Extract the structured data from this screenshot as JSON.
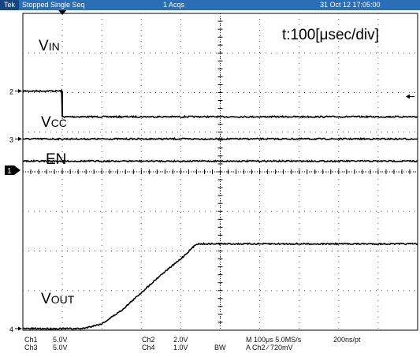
{
  "header": {
    "brand": "Tek",
    "status": "Stopped  Single Seq",
    "acquisitions": "1 Acqs",
    "datetime": "31 Oct 12 17:05:00"
  },
  "chart_data": {
    "type": "line",
    "title": "",
    "time_scale_label": "t:100[μsec/div]",
    "grid": true,
    "divisions": {
      "x": 10,
      "y": 8
    },
    "x_unit": "div",
    "y_unit": "div",
    "series": [
      {
        "name": "VIN",
        "label_main": "V",
        "label_sub": "IN",
        "color": "#000000",
        "points": [
          [
            0,
            1.96
          ],
          [
            1,
            1.96
          ],
          [
            1,
            2.61
          ],
          [
            10,
            2.61
          ]
        ]
      },
      {
        "name": "VCC",
        "label_main": "V",
        "label_sub": "CC",
        "color": "#000000",
        "points": [
          [
            0,
            3.17
          ],
          [
            10,
            3.17
          ]
        ]
      },
      {
        "name": "EN",
        "label_main": "EN",
        "label_sub": "",
        "color": "#000000",
        "points": [
          [
            0,
            3.73
          ],
          [
            10,
            3.73
          ]
        ]
      },
      {
        "name": "VOUT",
        "label_main": "V",
        "label_sub": "OUT",
        "color": "#000000",
        "points": [
          [
            0,
            7.96
          ],
          [
            1.5,
            7.96
          ],
          [
            2,
            7.84
          ],
          [
            2.5,
            7.5
          ],
          [
            3,
            7.05
          ],
          [
            3.5,
            6.6
          ],
          [
            4,
            6.2
          ],
          [
            4.4,
            5.82
          ],
          [
            10,
            5.82
          ]
        ]
      }
    ],
    "markers": [
      {
        "label": "2",
        "y": 1.96
      },
      {
        "label": "3",
        "y": 3.17
      },
      {
        "label": "1",
        "y": 3.96,
        "boxed": true
      },
      {
        "label": "4",
        "y": 7.96
      }
    ]
  },
  "footer": {
    "ch1": "Ch1",
    "ch1_val": "5.0V",
    "ch3": "Ch3",
    "ch3_val": "5.0V",
    "ch2": "Ch2",
    "ch2_val": "2.0V",
    "ch4": "Ch4",
    "ch4_val": "1.0V",
    "bw": "BW",
    "timebase": "M 100μs 5.0MS/s",
    "resolution": "200ns/pt",
    "trigger": "A  Ch2  ∕  720mV"
  }
}
